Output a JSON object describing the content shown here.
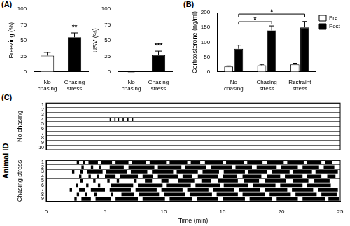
{
  "panel_labels": [
    "(A)",
    "(B)",
    "(C)"
  ],
  "shared_y_label": "Animal ID",
  "chart_data": [
    {
      "type": "bar",
      "y_label": "Freezing (%)",
      "categories": [
        "No chasing",
        "Chasing stress"
      ],
      "values": [
        26,
        55
      ],
      "errors": [
        5,
        7
      ],
      "colors": [
        "#ffffff",
        "#000000"
      ],
      "ylim": [
        0,
        100
      ],
      "yticks": [
        0,
        25,
        50,
        75,
        100
      ],
      "grid": false,
      "annotations": [
        {
          "text": "**",
          "category": "Chasing stress"
        }
      ]
    },
    {
      "type": "bar",
      "y_label": "USV (%)",
      "categories": [
        "No chasing",
        "Chasing stress"
      ],
      "values": [
        0,
        27
      ],
      "errors": [
        0,
        6
      ],
      "colors": [
        "#ffffff",
        "#000000"
      ],
      "ylim": [
        0,
        100
      ],
      "yticks": [
        0,
        25,
        50,
        75,
        100
      ],
      "grid": false,
      "annotations": [
        {
          "text": "***",
          "category": "Chasing stress"
        }
      ]
    },
    {
      "type": "bar",
      "y_label": "Corticosterone (ng/ml)",
      "categories": [
        "No chasing",
        "Chasing stress",
        "Restraint stress"
      ],
      "series": [
        {
          "name": "Pre",
          "color": "#ffffff",
          "values": [
            18,
            22,
            25
          ],
          "errors": [
            2,
            3,
            4
          ]
        },
        {
          "name": "Post",
          "color": "#000000",
          "values": [
            78,
            140,
            150
          ],
          "errors": [
            12,
            15,
            20
          ]
        }
      ],
      "ylim": [
        0,
        200
      ],
      "yticks": [
        0,
        50,
        100,
        150,
        200
      ],
      "grid": false,
      "legend": "right",
      "annotations": [
        {
          "text": "*",
          "series": "Post",
          "from": "No chasing",
          "to": "Chasing stress"
        },
        {
          "text": "*",
          "series": "Post",
          "from": "No chasing",
          "to": "Restraint stress"
        }
      ]
    },
    {
      "type": "raster",
      "y_label": "No chasing",
      "categories": [
        "1",
        "2",
        "3",
        "4",
        "5",
        "6",
        "7",
        "8",
        "9",
        "10"
      ],
      "intervals": [
        [],
        [],
        [],
        [
          [
            5.4,
            5.5
          ],
          [
            5.8,
            5.9
          ],
          [
            6.1,
            6.2
          ],
          [
            6.5,
            6.6
          ],
          [
            6.9,
            7.0
          ],
          [
            7.3,
            7.4
          ]
        ],
        [],
        [],
        [],
        [],
        [],
        []
      ],
      "color": "#000000",
      "xlim": [
        0,
        25
      ],
      "tick_labels": "y",
      "grid": true
    },
    {
      "type": "raster",
      "y_label": "Chasing stress",
      "x_label": "Time (min)",
      "categories": [
        "1",
        "2",
        "3",
        "4",
        "5",
        "6",
        "7",
        "8",
        "9"
      ],
      "intervals": [
        [
          [
            2.6,
            2.8
          ],
          [
            3.1,
            3.3
          ],
          [
            3.6,
            4.4
          ],
          [
            4.7,
            5.6
          ],
          [
            5.9,
            7.0
          ],
          [
            7.3,
            8.5
          ],
          [
            8.8,
            10.2
          ],
          [
            10.5,
            12.0
          ],
          [
            12.3,
            13.1
          ],
          [
            13.5,
            15.0
          ],
          [
            15.3,
            16.8
          ],
          [
            17.1,
            18.4
          ],
          [
            18.8,
            20.2
          ],
          [
            20.5,
            21.9
          ],
          [
            22.2,
            23.4
          ],
          [
            23.7,
            24.3
          ]
        ],
        [
          [
            3.0,
            3.2
          ],
          [
            3.8,
            4.0
          ],
          [
            4.5,
            4.7
          ],
          [
            5.4,
            6.6
          ],
          [
            7.0,
            9.2
          ],
          [
            9.5,
            11.5
          ],
          [
            11.8,
            13.6
          ],
          [
            14.0,
            15.8
          ],
          [
            16.1,
            17.5
          ],
          [
            17.9,
            19.6
          ],
          [
            20.0,
            21.4
          ],
          [
            21.8,
            23.2
          ],
          [
            23.6,
            24.5
          ]
        ],
        [
          [
            2.2,
            2.4
          ],
          [
            2.9,
            3.1
          ],
          [
            3.5,
            4.8
          ],
          [
            5.1,
            6.9
          ],
          [
            7.2,
            8.6
          ],
          [
            9.0,
            10.8
          ],
          [
            11.1,
            12.9
          ],
          [
            13.3,
            14.7
          ],
          [
            15.1,
            16.9
          ],
          [
            17.2,
            18.8
          ],
          [
            19.2,
            20.7
          ],
          [
            21.0,
            22.6
          ],
          [
            22.9,
            24.8
          ]
        ],
        [
          [
            2.8,
            3.0
          ],
          [
            3.6,
            3.8
          ],
          [
            4.3,
            4.5
          ],
          [
            5.0,
            5.9
          ],
          [
            6.3,
            7.8
          ],
          [
            8.2,
            9.1
          ],
          [
            9.5,
            11.2
          ],
          [
            11.6,
            12.4
          ],
          [
            12.9,
            14.6
          ],
          [
            15.0,
            16.2
          ],
          [
            16.7,
            18.3
          ],
          [
            18.8,
            19.9
          ],
          [
            20.3,
            21.8
          ],
          [
            22.2,
            23.4
          ],
          [
            23.9,
            24.6
          ]
        ],
        [
          [
            2.9,
            3.1
          ],
          [
            4.0,
            4.2
          ],
          [
            5.2,
            5.4
          ],
          [
            6.0,
            6.2
          ],
          [
            7.5,
            7.7
          ],
          [
            8.4,
            9.0
          ],
          [
            9.8,
            10.4
          ],
          [
            11.2,
            12.6
          ],
          [
            13.2,
            14.0
          ],
          [
            14.6,
            16.3
          ],
          [
            16.8,
            18.1
          ],
          [
            18.6,
            20.4
          ],
          [
            21.0,
            22.3
          ],
          [
            22.8,
            24.1
          ]
        ],
        [
          [
            2.5,
            2.7
          ],
          [
            3.4,
            3.6
          ],
          [
            4.4,
            4.6
          ],
          [
            5.5,
            7.4
          ],
          [
            7.8,
            9.9
          ],
          [
            10.2,
            12.3
          ],
          [
            12.7,
            14.8
          ],
          [
            15.1,
            17.2
          ],
          [
            17.6,
            19.5
          ],
          [
            19.9,
            21.8
          ],
          [
            22.2,
            24.2
          ]
        ],
        [
          [
            2.0,
            2.2
          ],
          [
            2.8,
            3.3
          ],
          [
            3.8,
            5.0
          ],
          [
            5.4,
            7.2
          ],
          [
            7.6,
            9.4
          ],
          [
            9.8,
            11.6
          ],
          [
            12.0,
            13.8
          ],
          [
            14.2,
            16.0
          ],
          [
            16.4,
            18.2
          ],
          [
            18.6,
            20.5
          ],
          [
            20.9,
            22.7
          ],
          [
            23.1,
            24.8
          ]
        ],
        [
          [
            2.6,
            2.8
          ],
          [
            3.3,
            3.5
          ],
          [
            4.1,
            4.3
          ],
          [
            5.5,
            5.7
          ],
          [
            6.4,
            7.5
          ],
          [
            7.9,
            9.6
          ],
          [
            10.0,
            11.8
          ],
          [
            12.2,
            14.1
          ],
          [
            14.5,
            16.3
          ],
          [
            16.7,
            18.6
          ],
          [
            19.0,
            20.8
          ],
          [
            21.2,
            23.0
          ],
          [
            23.4,
            24.7
          ]
        ],
        [
          [
            2.4,
            2.6
          ],
          [
            3.0,
            3.8
          ],
          [
            4.2,
            5.5
          ],
          [
            5.9,
            7.8
          ],
          [
            8.2,
            10.1
          ],
          [
            10.5,
            12.4
          ],
          [
            12.8,
            14.6
          ],
          [
            15.0,
            16.9
          ],
          [
            17.3,
            19.2
          ],
          [
            19.6,
            21.4
          ],
          [
            21.8,
            23.7
          ],
          [
            24.0,
            24.9
          ]
        ]
      ],
      "color": "#000000",
      "xlim": [
        0,
        25
      ],
      "xticks": [
        0,
        5,
        10,
        15,
        20,
        25
      ],
      "grid": true
    }
  ]
}
